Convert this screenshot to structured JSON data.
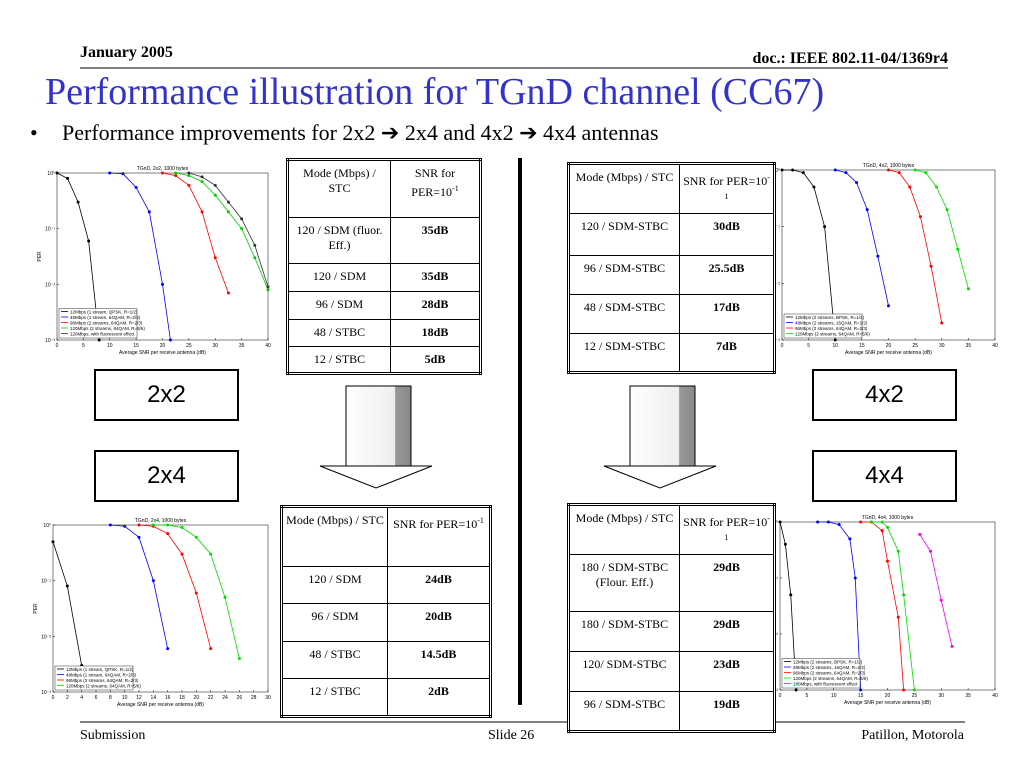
{
  "header": {
    "date": "January 2005",
    "doc": "doc.: IEEE 802.11-04/1369r4",
    "title": "Performance illustration for TGnD channel (CC67)",
    "bullet": "Performance improvements for 2x2 ➔ 2x4 and 4x2 ➔ 4x4 antennas"
  },
  "labels": [
    "2x2",
    "2x4",
    "4x2",
    "4x4"
  ],
  "tables": [
    {
      "mode": "Mode (Mbps) / STC",
      "snr": "SNR for PER=10",
      "snr_exp": "-1",
      "rows": [
        [
          "120 / SDM (fluor. Eff.)",
          "35dB"
        ],
        [
          "120 / SDM",
          "35dB"
        ],
        [
          "96 / SDM",
          "28dB"
        ],
        [
          "48 / STBC",
          "18dB"
        ],
        [
          "12 / STBC",
          "5dB"
        ]
      ]
    },
    {
      "mode": "Mode (Mbps) / STC",
      "snr": "SNR for PER=10",
      "snr_exp": "-1",
      "rows": [
        [
          "120 / SDM-STBC",
          "30dB"
        ],
        [
          "96 / SDM-STBC",
          "25.5dB"
        ],
        [
          "48 / SDM-STBC",
          "17dB"
        ],
        [
          "12 / SDM-STBC",
          "7dB"
        ]
      ]
    },
    {
      "mode": "Mode (Mbps) / STC",
      "snr": "SNR for PER=10",
      "snr_exp": "-1",
      "rows": [
        [
          "120 / SDM",
          "24dB"
        ],
        [
          "96 / SDM",
          "20dB"
        ],
        [
          "48 / STBC",
          "14.5dB"
        ],
        [
          "12 / STBC",
          "2dB"
        ]
      ]
    },
    {
      "mode": "Mode (Mbps) / STC",
      "snr": "SNR for PER=10",
      "snr_exp": "-1",
      "rows": [
        [
          "180 / SDM-STBC (Flour. Eff.)",
          "29dB"
        ],
        [
          "180 / SDM-STBC",
          "29dB"
        ],
        [
          "120/ SDM-STBC",
          "23dB"
        ],
        [
          "96 / SDM-STBC",
          "19dB"
        ]
      ]
    }
  ],
  "chart_data": [
    {
      "type": "line",
      "title": "TGnD, 2x2, 1000 bytes",
      "x_label": "Average SNR per receive antenna (dB)",
      "y_label": "PER",
      "log_y": true,
      "grid": false,
      "xlim": [
        0,
        40
      ],
      "xticks": [
        0,
        5,
        10,
        15,
        20,
        25,
        30,
        35,
        40
      ],
      "ylim": [
        0.001,
        1
      ],
      "yticks": [
        {
          "value": 0.001,
          "label": "10⁻³"
        },
        {
          "value": 0.01,
          "label": "10⁻²"
        },
        {
          "value": 0.1,
          "label": "10⁻¹"
        },
        {
          "value": 1,
          "label": "10⁰"
        }
      ],
      "series": [
        {
          "name": "12Mbps (1 stream, QPSK, R=1/2)",
          "color": "#000000",
          "x": [
            0,
            2,
            4,
            6,
            8
          ],
          "values": [
            1,
            0.8,
            0.3,
            0.06,
            0.001
          ]
        },
        {
          "name": "48Mbps (1 stream, 64QAM, R=2/3)",
          "color": "#0000ff",
          "x": [
            10,
            12.5,
            15,
            17.5,
            20,
            21.5
          ],
          "values": [
            1,
            0.97,
            0.55,
            0.2,
            0.01,
            0.001
          ]
        },
        {
          "name": "96Mbps (2 streams, 64QAM, R=2/3)",
          "color": "#ff0000",
          "x": [
            20,
            22.5,
            25,
            27.5,
            30,
            32.5
          ],
          "values": [
            1,
            0.9,
            0.6,
            0.2,
            0.03,
            0.007
          ]
        },
        {
          "name": "120Mbps (2 streams, 64QAM, R=5/6)",
          "color": "#00cc00",
          "x": [
            22.5,
            25,
            27.5,
            30,
            32.5,
            35,
            37.5,
            40
          ],
          "values": [
            1,
            0.9,
            0.7,
            0.4,
            0.2,
            0.1,
            0.03,
            0.008
          ]
        },
        {
          "name": "120Mbps, with fluorescent effect",
          "color": "#333333",
          "x": [
            25,
            27.5,
            30,
            32.5,
            35,
            37.5,
            40
          ],
          "values": [
            1,
            0.85,
            0.6,
            0.3,
            0.15,
            0.05,
            0.009
          ]
        }
      ]
    },
    {
      "type": "line",
      "title": "TGnD, 4x2, 1000 bytes",
      "x_label": "Average SNR per receive antenna (dB)",
      "y_label": "PER",
      "log_y": true,
      "grid": false,
      "xlim": [
        0,
        40
      ],
      "xticks": [
        0,
        5,
        10,
        15,
        20,
        25,
        30,
        35,
        40
      ],
      "ylim": [
        0.001,
        1
      ],
      "yticks": [
        {
          "value": 0.001,
          "label": "10⁻³"
        },
        {
          "value": 0.01,
          "label": "10⁻²"
        },
        {
          "value": 0.1,
          "label": "10⁻¹"
        },
        {
          "value": 1,
          "label": "10⁰"
        }
      ],
      "series": [
        {
          "name": "12Mbps (2 streams, BPSK, R=1/2)",
          "color": "#000000",
          "x": [
            0,
            2,
            4,
            6,
            8,
            10
          ],
          "values": [
            1,
            1,
            0.9,
            0.5,
            0.1,
            0.001
          ]
        },
        {
          "name": "48Mbps (2 streams, 16QAM, R=1/2)",
          "color": "#0000ff",
          "x": [
            10,
            12,
            14,
            16,
            18,
            20
          ],
          "values": [
            1,
            0.9,
            0.6,
            0.2,
            0.03,
            0.004
          ]
        },
        {
          "name": "96Mbps (2 streams, 64QAM, R=2/3)",
          "color": "#ff0000",
          "x": [
            20,
            22,
            24,
            26,
            28,
            30
          ],
          "values": [
            1,
            0.9,
            0.5,
            0.15,
            0.02,
            0.002
          ]
        },
        {
          "name": "120Mbps (2 streams, 64QAM, R=5/6)",
          "color": "#00dd00",
          "x": [
            25,
            27,
            29,
            31,
            33,
            35
          ],
          "values": [
            1,
            0.9,
            0.5,
            0.2,
            0.04,
            0.008
          ]
        }
      ]
    },
    {
      "type": "line",
      "title": "TGnD, 2x4, 1000 bytes",
      "x_label": "Average SNR per receive antenna (dB)",
      "y_label": "PER",
      "log_y": true,
      "grid": false,
      "xlim": [
        0,
        30
      ],
      "xticks": [
        0,
        2,
        4,
        6,
        8,
        10,
        12,
        14,
        16,
        18,
        20,
        22,
        24,
        26,
        28,
        30
      ],
      "ylim": [
        0.001,
        1
      ],
      "yticks": [
        {
          "value": 0.001,
          "label": "10⁻³"
        },
        {
          "value": 0.01,
          "label": "10⁻²"
        },
        {
          "value": 0.1,
          "label": "10⁻¹"
        },
        {
          "value": 1,
          "label": "10⁰"
        }
      ],
      "series": [
        {
          "name": "12Mbps (1 stream, QPSK, R=1/2)",
          "color": "#000000",
          "x": [
            0,
            2,
            4
          ],
          "values": [
            0.5,
            0.08,
            0.003
          ]
        },
        {
          "name": "48Mbps (1 stream, 64QAM, R=2/3)",
          "color": "#0000ff",
          "x": [
            8,
            10,
            12,
            14,
            16
          ],
          "values": [
            1,
            0.95,
            0.6,
            0.1,
            0.006
          ]
        },
        {
          "name": "96Mbps (2 streams, 64QAM, R=2/3)",
          "color": "#ff0000",
          "x": [
            12,
            14,
            16,
            18,
            20,
            22
          ],
          "values": [
            1,
            0.95,
            0.7,
            0.3,
            0.06,
            0.006
          ]
        },
        {
          "name": "120Mbps (2 streams, 64QAM, R=5/6)",
          "color": "#00dd00",
          "x": [
            14,
            16,
            18,
            20,
            22,
            24,
            26
          ],
          "values": [
            1,
            1,
            0.9,
            0.6,
            0.3,
            0.05,
            0.004
          ]
        }
      ]
    },
    {
      "type": "line",
      "title": "TGnD, 4x4, 1000 bytes",
      "x_label": "Average SNR per receive antenna (dB)",
      "y_label": "PER",
      "log_y": true,
      "grid": false,
      "xlim": [
        0,
        40
      ],
      "xticks": [
        0,
        5,
        10,
        15,
        20,
        25,
        30,
        35,
        40
      ],
      "ylim": [
        0.001,
        1
      ],
      "yticks": [
        {
          "value": 0.001,
          "label": "10⁻³"
        },
        {
          "value": 0.01,
          "label": "10⁻²"
        },
        {
          "value": 0.1,
          "label": "10⁻¹"
        },
        {
          "value": 1,
          "label": "10⁰"
        }
      ],
      "series": [
        {
          "name": "12Mbps (2 streams, BPSK, R=1/2)",
          "color": "#000000",
          "x": [
            0,
            1,
            2,
            3
          ],
          "values": [
            1,
            0.4,
            0.05,
            0.001
          ]
        },
        {
          "name": "48Mbps (2 streams, 16QAM, R=1/2)",
          "color": "#0000ff",
          "x": [
            7,
            9,
            11,
            13,
            14,
            15
          ],
          "values": [
            1,
            1,
            0.9,
            0.5,
            0.1,
            0.001
          ]
        },
        {
          "name": "96Mbps (2 streams, 64QAM, R=2/3)",
          "color": "#ff0000",
          "x": [
            15,
            17,
            19,
            20,
            22,
            23
          ],
          "values": [
            1,
            1,
            0.7,
            0.2,
            0.02,
            0.001
          ]
        },
        {
          "name": "120Mbps (2 streams, 64QAM, R=5/6)",
          "color": "#00dd00",
          "x": [
            17,
            19,
            20,
            22,
            23,
            25
          ],
          "values": [
            1,
            1,
            0.8,
            0.3,
            0.05,
            0.001
          ]
        },
        {
          "name": "180Mbps, with fluorescent effect",
          "color": "#ee00ee",
          "x": [
            26,
            28,
            30,
            32
          ],
          "values": [
            0.6,
            0.3,
            0.04,
            0.006
          ]
        }
      ]
    }
  ],
  "footer": {
    "left": "Submission",
    "center": "Slide 26",
    "right": "Patillon, Motorola"
  }
}
